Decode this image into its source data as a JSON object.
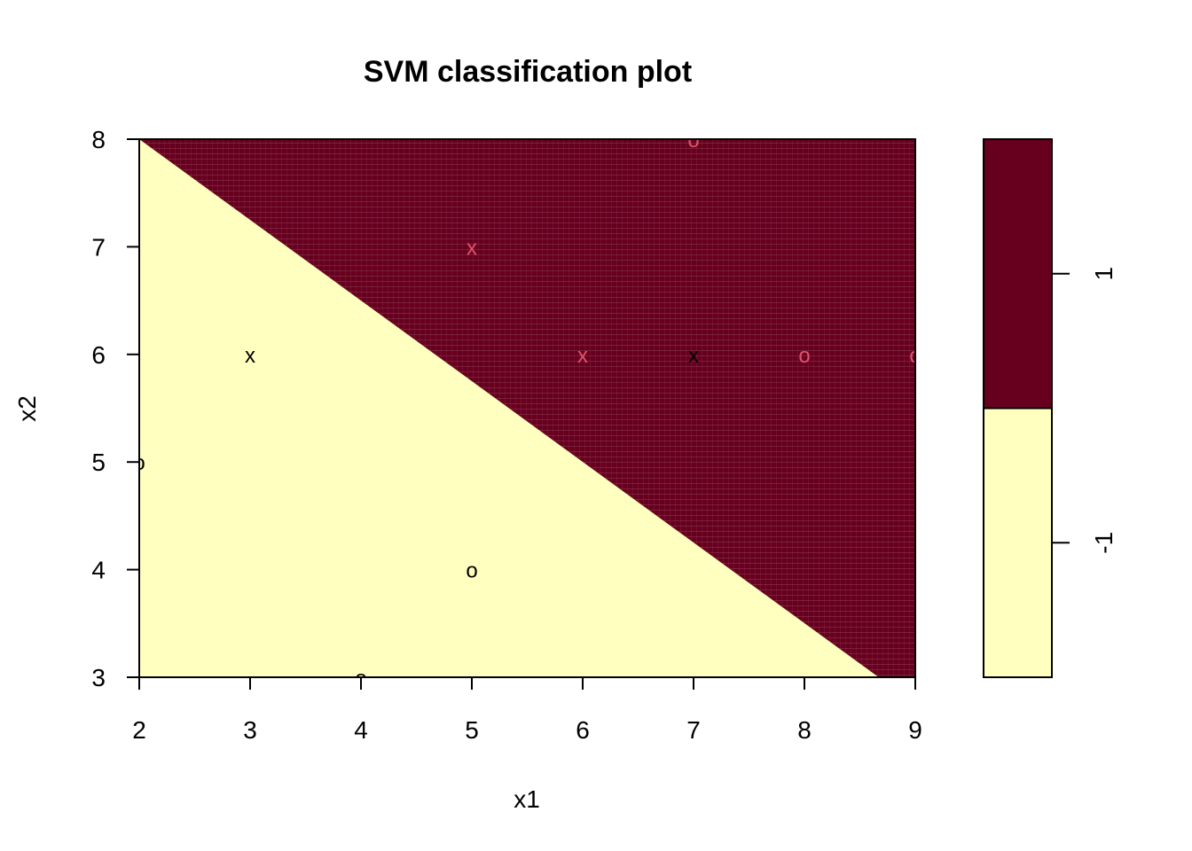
{
  "chart_data": {
    "type": "scatter",
    "title": "SVM classification plot",
    "xlabel": "x1",
    "ylabel": "x2",
    "xlim": [
      2,
      9
    ],
    "ylim": [
      3,
      8
    ],
    "xticks": [
      "2",
      "3",
      "4",
      "5",
      "6",
      "7",
      "8",
      "9"
    ],
    "yticks": [
      "3",
      "4",
      "5",
      "6",
      "7",
      "8"
    ],
    "decision_boundary": {
      "description": "linear boundary separating classes",
      "points": [
        [
          2,
          8
        ],
        [
          8.67,
          3
        ]
      ]
    },
    "regions": [
      {
        "class": "1",
        "color": "#67001F",
        "side": "upper-right"
      },
      {
        "class": "-1",
        "color": "#FFFFBF",
        "side": "lower-left"
      }
    ],
    "points": [
      {
        "x": 2,
        "y": 5,
        "symbol": "o",
        "color": "#000000"
      },
      {
        "x": 3,
        "y": 6,
        "symbol": "x",
        "color": "#000000"
      },
      {
        "x": 4,
        "y": 3,
        "symbol": "o",
        "color": "#000000"
      },
      {
        "x": 5,
        "y": 4,
        "symbol": "o",
        "color": "#000000"
      },
      {
        "x": 5,
        "y": 7,
        "symbol": "x",
        "color": "#DF536B"
      },
      {
        "x": 6,
        "y": 6,
        "symbol": "x",
        "color": "#DF536B"
      },
      {
        "x": 7,
        "y": 6,
        "symbol": "x",
        "color": "#000000"
      },
      {
        "x": 7,
        "y": 8,
        "symbol": "o",
        "color": "#DF536B"
      },
      {
        "x": 8,
        "y": 6,
        "symbol": "o",
        "color": "#DF536B"
      },
      {
        "x": 9,
        "y": 6,
        "symbol": "o",
        "color": "#DF536B"
      }
    ],
    "legend": {
      "placement": "right",
      "entries": [
        {
          "label": "1",
          "color": "#67001F"
        },
        {
          "label": "-1",
          "color": "#FFFFBF"
        }
      ]
    }
  }
}
